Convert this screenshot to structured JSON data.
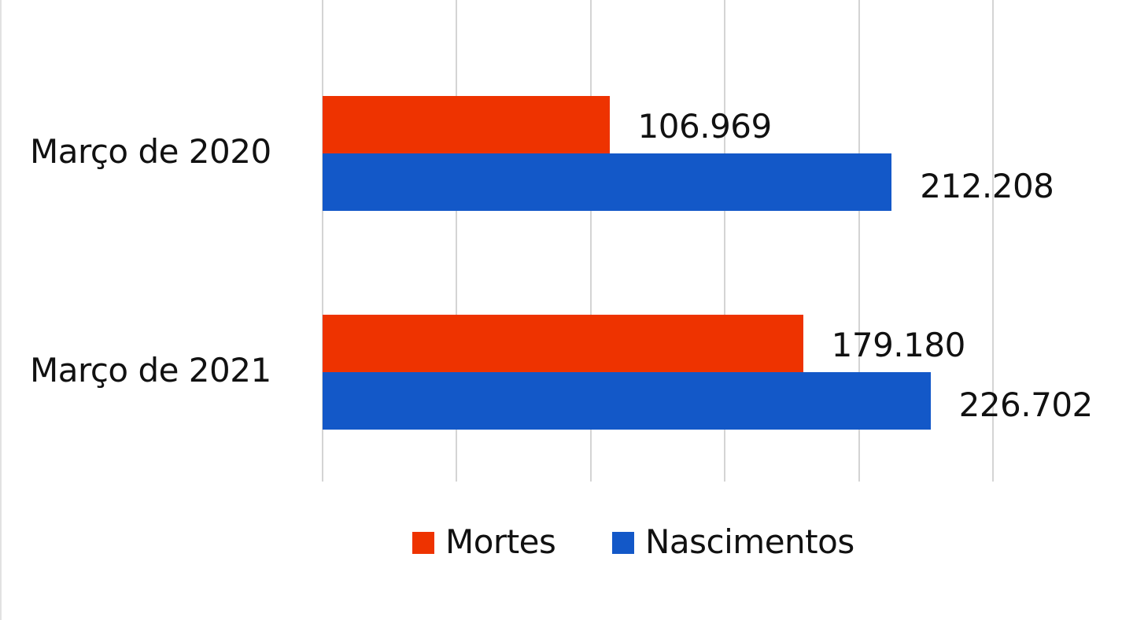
{
  "chart_data": {
    "type": "bar",
    "orientation": "horizontal",
    "title": "",
    "xlabel": "",
    "ylabel": "",
    "categories": [
      "Março de 2020",
      "Março de 2021"
    ],
    "series": [
      {
        "name": "Mortes",
        "color": "#EE3300",
        "values": [
          106969,
          179180
        ],
        "labels": [
          "106.969",
          "179.180"
        ]
      },
      {
        "name": "Nascimentos",
        "color": "#1358C8",
        "values": [
          212208,
          226702
        ],
        "labels": [
          "212.208",
          "226.702"
        ]
      }
    ],
    "xlim": [
      0,
      250000
    ],
    "x_gridlines": [
      0,
      50000,
      100000,
      150000,
      200000,
      250000
    ],
    "x_tick_labels_visible": false,
    "grid": true,
    "legend_position": "bottom",
    "data_labels": true
  },
  "legend": [
    {
      "label": "Mortes",
      "color": "#EE3300"
    },
    {
      "label": "Nascimentos",
      "color": "#1358C8"
    }
  ]
}
